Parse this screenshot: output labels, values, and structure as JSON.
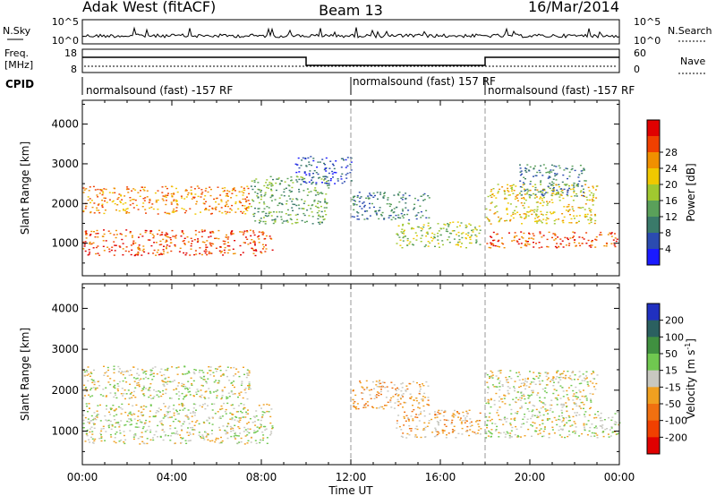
{
  "header": {
    "station": "Adak West (fitACF)",
    "beam": "Beam 13",
    "date": "16/Mar/2014"
  },
  "top_panels": {
    "nsky_label": "N.Sky",
    "nsky_ticks": [
      "10^5",
      "10^0"
    ],
    "nsearch_ticks": [
      "10^5",
      "10^0"
    ],
    "nsearch_label": "N.Search",
    "freq_label_1": "Freq.",
    "freq_label_2": "[MHz]",
    "freq_ticks": [
      "18",
      "8"
    ],
    "nave_ticks": [
      "60",
      "0"
    ],
    "nave_label": "Nave",
    "cpid_label": "CPID",
    "cpid_segments": [
      {
        "label": "normalsound (fast) -157 RF",
        "start": 0,
        "end": 12
      },
      {
        "label": "normalsound (fast) 157 RF",
        "start": 12,
        "end": 18
      },
      {
        "label": "normalsound (fast) -157 RF",
        "start": 18,
        "end": 24
      }
    ]
  },
  "chart_data": [
    {
      "type": "heatmap",
      "quantity": "Power",
      "ylabel": "Slant Range [km]",
      "ylim": [
        180,
        4600
      ],
      "yticks": [
        "1000",
        "2000",
        "3000",
        "4000"
      ],
      "xlim": [
        0,
        24
      ],
      "colorbar": {
        "label": "Power [dB]",
        "ticks": [
          "4",
          "8",
          "12",
          "16",
          "20",
          "24",
          "28"
        ],
        "colors": [
          "#1a1aff",
          "#2b4bb0",
          "#3a7a6a",
          "#5aa05a",
          "#a0c830",
          "#f0c800",
          "#f09000",
          "#f04000",
          "#e00000"
        ]
      },
      "regions": [
        {
          "t0": 0.0,
          "t1": 8.5,
          "r0": 700,
          "r1": 1350,
          "level": 7
        },
        {
          "t0": 0.0,
          "t1": 7.5,
          "r0": 1750,
          "r1": 2450,
          "level": 6
        },
        {
          "t0": 7.5,
          "t1": 11.0,
          "r0": 1500,
          "r1": 2700,
          "level": 3
        },
        {
          "t0": 9.5,
          "t1": 12.0,
          "r0": 2500,
          "r1": 3200,
          "level": 1
        },
        {
          "t0": 12.0,
          "t1": 15.5,
          "r0": 1600,
          "r1": 2300,
          "level": 2
        },
        {
          "t0": 14.0,
          "t1": 17.8,
          "r0": 900,
          "r1": 1550,
          "level": 4
        },
        {
          "t0": 18.0,
          "t1": 24.0,
          "r0": 900,
          "r1": 1300,
          "level": 7
        },
        {
          "t0": 18.0,
          "t1": 23.0,
          "r0": 1500,
          "r1": 2500,
          "level": 5
        },
        {
          "t0": 19.5,
          "t1": 22.5,
          "r0": 2200,
          "r1": 3000,
          "level": 2
        }
      ]
    },
    {
      "type": "heatmap",
      "quantity": "Velocity",
      "ylabel": "Slant Range [km]",
      "ylim": [
        180,
        4600
      ],
      "yticks": [
        "1000",
        "2000",
        "3000",
        "4000"
      ],
      "xlim": [
        0,
        24
      ],
      "colorbar": {
        "label": "Velocity [m s",
        "label_sup": "-1",
        "label_end": "]",
        "ticks": [
          "200",
          "100",
          "50",
          "15",
          "-15",
          "-50",
          "-100",
          "-200"
        ],
        "colors": [
          "#2030c0",
          "#2b6060",
          "#409040",
          "#70c850",
          "#c8c8c0",
          "#f0a020",
          "#f07010",
          "#f04000",
          "#e00000"
        ]
      },
      "regions": [
        {
          "t0": 0.0,
          "t1": 8.5,
          "r0": 700,
          "r1": 1700,
          "level": 4
        },
        {
          "t0": 0.0,
          "t1": 7.5,
          "r0": 1800,
          "r1": 2600,
          "level": 4
        },
        {
          "t0": 12.0,
          "t1": 15.5,
          "r0": 1550,
          "r1": 2250,
          "level": 5
        },
        {
          "t0": 14.0,
          "t1": 17.8,
          "r0": 850,
          "r1": 1550,
          "level": 5
        },
        {
          "t0": 18.0,
          "t1": 24.0,
          "r0": 850,
          "r1": 1500,
          "level": 4
        },
        {
          "t0": 18.0,
          "t1": 23.0,
          "r0": 1500,
          "r1": 2500,
          "level": 4
        }
      ]
    }
  ],
  "xaxis": {
    "ticks": [
      "00:00",
      "04:00",
      "08:00",
      "12:00",
      "16:00",
      "20:00",
      "00:00"
    ],
    "label": "Time UT"
  }
}
